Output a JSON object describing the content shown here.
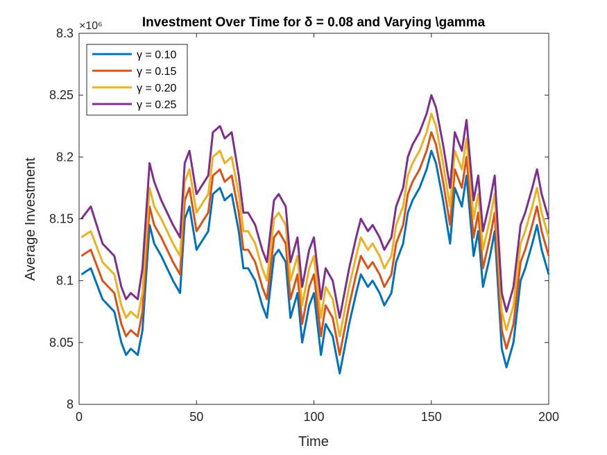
{
  "chart_data": {
    "type": "line",
    "title": "Investment Over Time for δ = 0.08 and Varying \\gamma",
    "xlabel": "Time",
    "ylabel": "Average Investment",
    "y_exponent": "×10⁶",
    "xlim": [
      0,
      200
    ],
    "ylim": [
      8.0,
      8.3
    ],
    "x_ticks": [
      "0",
      "50",
      "100",
      "150",
      "200"
    ],
    "y_ticks": [
      "8",
      "8.05",
      "8.1",
      "8.15",
      "8.2",
      "8.25",
      "8.3"
    ],
    "legend_position": "top-left",
    "grid": false,
    "x": [
      1,
      5,
      10,
      15,
      18,
      20,
      22,
      25,
      27,
      30,
      32,
      35,
      40,
      43,
      45,
      47,
      50,
      55,
      57,
      60,
      62,
      65,
      68,
      70,
      72,
      75,
      78,
      80,
      83,
      85,
      88,
      90,
      93,
      95,
      98,
      100,
      103,
      105,
      108,
      111,
      115,
      118,
      120,
      123,
      125,
      128,
      130,
      133,
      135,
      138,
      140,
      142,
      145,
      148,
      150,
      152,
      155,
      158,
      160,
      163,
      165,
      168,
      170,
      172,
      175,
      177,
      180,
      182,
      185,
      188,
      190,
      193,
      195,
      197,
      200
    ],
    "series": [
      {
        "name": "γ = 0.10",
        "color": "#0072BD",
        "values": [
          8.105,
          8.11,
          8.085,
          8.075,
          8.05,
          8.04,
          8.045,
          8.04,
          8.06,
          8.145,
          8.13,
          8.12,
          8.1,
          8.09,
          8.15,
          8.16,
          8.125,
          8.14,
          8.17,
          8.175,
          8.165,
          8.17,
          8.14,
          8.11,
          8.11,
          8.1,
          8.08,
          8.07,
          8.12,
          8.125,
          8.115,
          8.07,
          8.09,
          8.05,
          8.08,
          8.09,
          8.04,
          8.065,
          8.055,
          8.025,
          8.065,
          8.09,
          8.105,
          8.095,
          8.1,
          8.09,
          8.08,
          8.09,
          8.115,
          8.13,
          8.155,
          8.165,
          8.175,
          8.19,
          8.205,
          8.195,
          8.165,
          8.13,
          8.175,
          8.16,
          8.185,
          8.12,
          8.14,
          8.095,
          8.12,
          8.14,
          8.045,
          8.03,
          8.05,
          8.1,
          8.11,
          8.13,
          8.145,
          8.125,
          8.105
        ]
      },
      {
        "name": "γ = 0.15",
        "color": "#D95319",
        "values": [
          8.12,
          8.125,
          8.1,
          8.09,
          8.065,
          8.055,
          8.06,
          8.055,
          8.075,
          8.16,
          8.145,
          8.135,
          8.115,
          8.105,
          8.165,
          8.175,
          8.14,
          8.155,
          8.185,
          8.19,
          8.18,
          8.185,
          8.155,
          8.125,
          8.125,
          8.115,
          8.095,
          8.085,
          8.135,
          8.14,
          8.13,
          8.085,
          8.105,
          8.065,
          8.095,
          8.105,
          8.055,
          8.08,
          8.07,
          8.04,
          8.08,
          8.105,
          8.12,
          8.11,
          8.115,
          8.105,
          8.095,
          8.105,
          8.13,
          8.145,
          8.17,
          8.18,
          8.19,
          8.205,
          8.22,
          8.21,
          8.18,
          8.145,
          8.19,
          8.175,
          8.2,
          8.135,
          8.155,
          8.11,
          8.135,
          8.155,
          8.06,
          8.045,
          8.065,
          8.115,
          8.125,
          8.145,
          8.16,
          8.14,
          8.12
        ]
      },
      {
        "name": "γ = 0.20",
        "color": "#EDB120",
        "values": [
          8.135,
          8.14,
          8.115,
          8.105,
          8.08,
          8.07,
          8.075,
          8.07,
          8.09,
          8.175,
          8.16,
          8.15,
          8.13,
          8.12,
          8.18,
          8.19,
          8.155,
          8.17,
          8.2,
          8.205,
          8.195,
          8.2,
          8.17,
          8.14,
          8.14,
          8.13,
          8.11,
          8.1,
          8.15,
          8.155,
          8.145,
          8.1,
          8.12,
          8.08,
          8.11,
          8.12,
          8.07,
          8.095,
          8.085,
          8.055,
          8.095,
          8.12,
          8.135,
          8.125,
          8.13,
          8.12,
          8.11,
          8.12,
          8.145,
          8.16,
          8.185,
          8.195,
          8.205,
          8.22,
          8.235,
          8.225,
          8.195,
          8.16,
          8.205,
          8.19,
          8.215,
          8.15,
          8.17,
          8.125,
          8.15,
          8.17,
          8.075,
          8.06,
          8.08,
          8.13,
          8.14,
          8.16,
          8.175,
          8.155,
          8.135
        ]
      },
      {
        "name": "γ = 0.25",
        "color": "#7E2F8E",
        "values": [
          8.15,
          8.16,
          8.13,
          8.12,
          8.095,
          8.085,
          8.09,
          8.085,
          8.11,
          8.195,
          8.18,
          8.165,
          8.145,
          8.135,
          8.195,
          8.205,
          8.17,
          8.185,
          8.22,
          8.225,
          8.215,
          8.22,
          8.185,
          8.155,
          8.155,
          8.145,
          8.125,
          8.115,
          8.165,
          8.17,
          8.16,
          8.115,
          8.135,
          8.095,
          8.125,
          8.135,
          8.085,
          8.11,
          8.1,
          8.07,
          8.11,
          8.135,
          8.15,
          8.14,
          8.145,
          8.135,
          8.125,
          8.135,
          8.16,
          8.175,
          8.2,
          8.21,
          8.22,
          8.235,
          8.25,
          8.24,
          8.21,
          8.175,
          8.22,
          8.205,
          8.23,
          8.165,
          8.185,
          8.14,
          8.165,
          8.185,
          8.09,
          8.075,
          8.095,
          8.145,
          8.155,
          8.175,
          8.19,
          8.17,
          8.15
        ]
      }
    ]
  }
}
